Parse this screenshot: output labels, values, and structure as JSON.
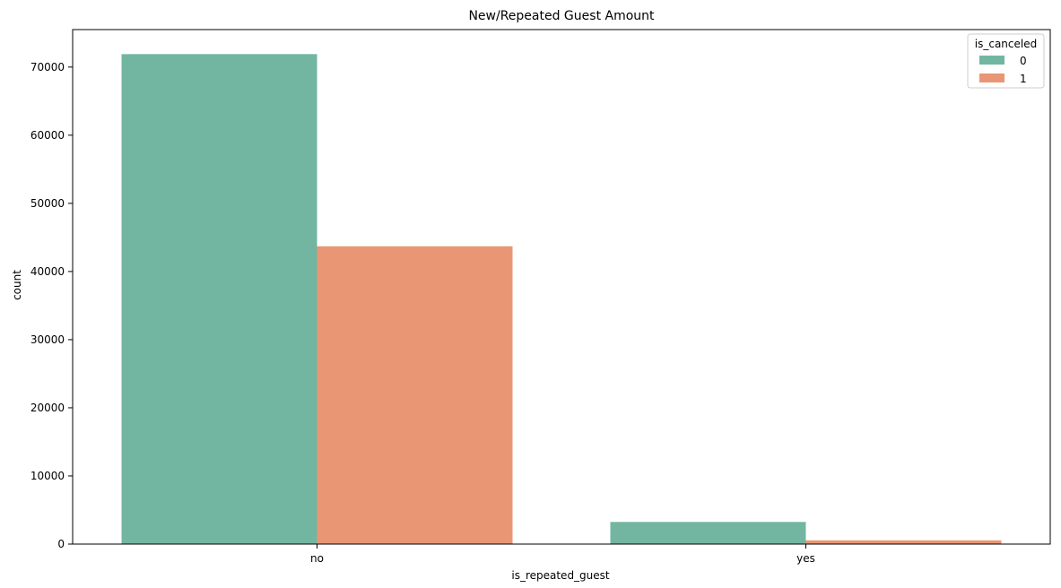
{
  "chart_data": {
    "type": "bar",
    "title": "New/Repeated Guest Amount",
    "xlabel": "is_repeated_guest",
    "ylabel": "count",
    "categories": [
      "no",
      "yes"
    ],
    "series": [
      {
        "name": "0",
        "values": [
          71900,
          3250
        ],
        "color": "#72b6a1"
      },
      {
        "name": "1",
        "values": [
          43700,
          550
        ],
        "color": "#e99675"
      }
    ],
    "ylim": [
      0,
      75500
    ],
    "yticks": [
      0,
      10000,
      20000,
      30000,
      40000,
      50000,
      60000,
      70000
    ],
    "legend": {
      "title": "is_canceled",
      "placement": "top-right"
    },
    "grid": false
  }
}
